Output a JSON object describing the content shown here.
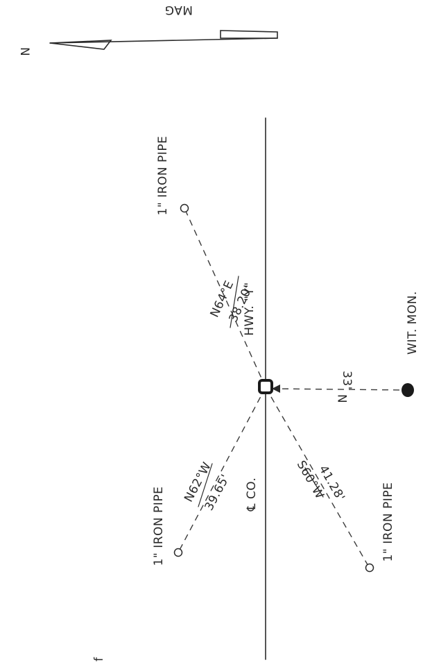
{
  "north_arrow": {
    "letter": "N",
    "magnetic_label": "MAG"
  },
  "centerline": {
    "road_label": "HWY. \"Y\"",
    "county_label": "℄ CO."
  },
  "ties": [
    {
      "id": "ne",
      "bearing": "N64°E",
      "distance": "38.20'",
      "monument": "1\" IRON PIPE"
    },
    {
      "id": "nw",
      "bearing": "N62°W",
      "distance": "39.65'",
      "monument": "1\" IRON PIPE"
    },
    {
      "id": "sw",
      "bearing": "S60°W",
      "distance": "41.28'",
      "monument": "1\" IRON PIPE"
    },
    {
      "id": "n",
      "bearing": "N",
      "distance": "33'",
      "monument": "WIT. MON."
    }
  ],
  "margin_mark": "f"
}
